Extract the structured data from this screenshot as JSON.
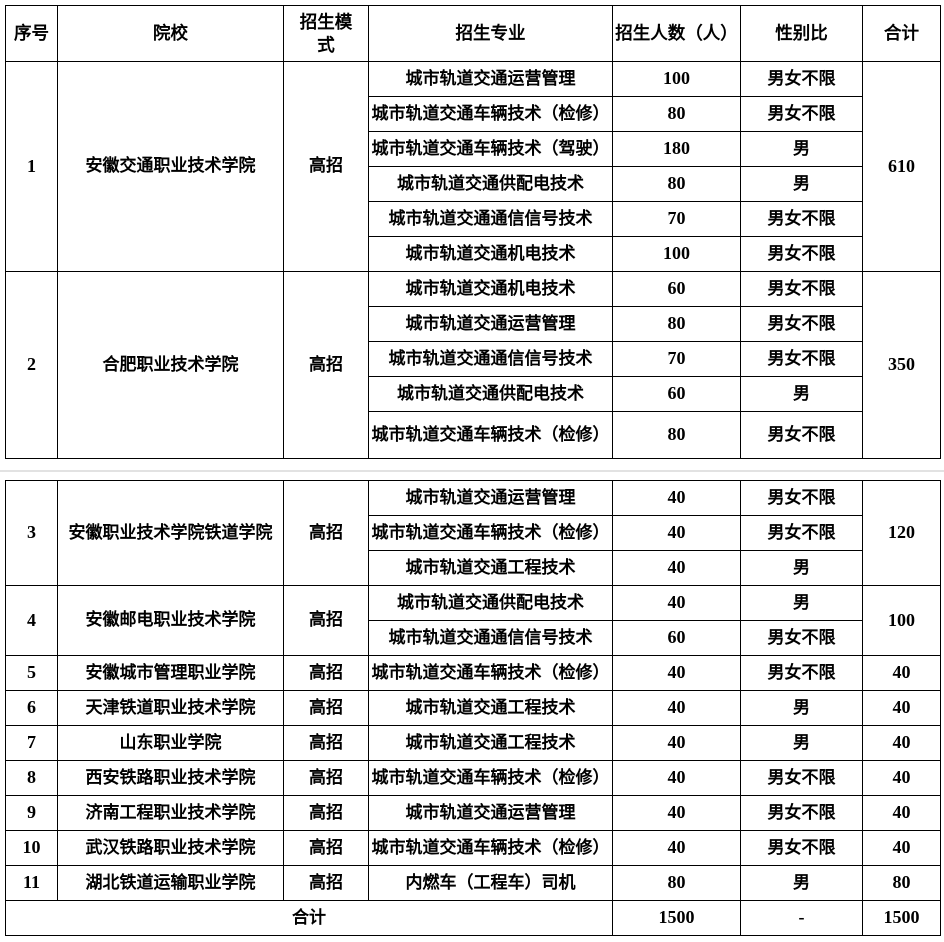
{
  "chart_data": {
    "type": "table",
    "columns": [
      "序号",
      "院校",
      "招生模式",
      "招生专业",
      "招生人数（人）",
      "性别比",
      "合计"
    ],
    "sections": [
      {
        "groups": [
          {
            "no": "1",
            "school": "安徽交通职业技术学院",
            "mode": "高招",
            "total": "610",
            "rows": [
              {
                "major": "城市轨道交通运营管理",
                "count": "100",
                "gender": "男女不限"
              },
              {
                "major": "城市轨道交通车辆技术（检修）",
                "count": "80",
                "gender": "男女不限"
              },
              {
                "major": "城市轨道交通车辆技术（驾驶）",
                "count": "180",
                "gender": "男"
              },
              {
                "major": "城市轨道交通供配电技术",
                "count": "80",
                "gender": "男"
              },
              {
                "major": "城市轨道交通通信信号技术",
                "count": "70",
                "gender": "男女不限"
              },
              {
                "major": "城市轨道交通机电技术",
                "count": "100",
                "gender": "男女不限"
              }
            ]
          },
          {
            "no": "2",
            "school": "合肥职业技术学院",
            "mode": "高招",
            "total": "350",
            "rows": [
              {
                "major": "城市轨道交通机电技术",
                "count": "60",
                "gender": "男女不限"
              },
              {
                "major": "城市轨道交通运营管理",
                "count": "80",
                "gender": "男女不限"
              },
              {
                "major": "城市轨道交通通信信号技术",
                "count": "70",
                "gender": "男女不限"
              },
              {
                "major": "城市轨道交通供配电技术",
                "count": "60",
                "gender": "男"
              },
              {
                "major": "城市轨道交通车辆技术（检修）",
                "count": "80",
                "gender": "男女不限"
              }
            ]
          }
        ]
      },
      {
        "groups": [
          {
            "no": "3",
            "school": "安徽职业技术学院铁道学院",
            "mode": "高招",
            "total": "120",
            "rows": [
              {
                "major": "城市轨道交通运营管理",
                "count": "40",
                "gender": "男女不限"
              },
              {
                "major": "城市轨道交通车辆技术（检修）",
                "count": "40",
                "gender": "男女不限"
              },
              {
                "major": "城市轨道交通工程技术",
                "count": "40",
                "gender": "男"
              }
            ]
          },
          {
            "no": "4",
            "school": "安徽邮电职业技术学院",
            "mode": "高招",
            "total": "100",
            "rows": [
              {
                "major": "城市轨道交通供配电技术",
                "count": "40",
                "gender": "男"
              },
              {
                "major": "城市轨道交通通信信号技术",
                "count": "60",
                "gender": "男女不限"
              }
            ]
          },
          {
            "no": "5",
            "school": "安徽城市管理职业学院",
            "mode": "高招",
            "total": "40",
            "rows": [
              {
                "major": "城市轨道交通车辆技术（检修）",
                "count": "40",
                "gender": "男女不限"
              }
            ]
          },
          {
            "no": "6",
            "school": "天津铁道职业技术学院",
            "mode": "高招",
            "total": "40",
            "rows": [
              {
                "major": "城市轨道交通工程技术",
                "count": "40",
                "gender": "男"
              }
            ]
          },
          {
            "no": "7",
            "school": "山东职业学院",
            "mode": "高招",
            "total": "40",
            "rows": [
              {
                "major": "城市轨道交通工程技术",
                "count": "40",
                "gender": "男"
              }
            ]
          },
          {
            "no": "8",
            "school": "西安铁路职业技术学院",
            "mode": "高招",
            "total": "40",
            "rows": [
              {
                "major": "城市轨道交通车辆技术（检修）",
                "count": "40",
                "gender": "男女不限"
              }
            ]
          },
          {
            "no": "9",
            "school": "济南工程职业技术学院",
            "mode": "高招",
            "total": "40",
            "rows": [
              {
                "major": "城市轨道交通运营管理",
                "count": "40",
                "gender": "男女不限"
              }
            ]
          },
          {
            "no": "10",
            "school": "武汉铁路职业技术学院",
            "mode": "高招",
            "total": "40",
            "rows": [
              {
                "major": "城市轨道交通车辆技术（检修）",
                "count": "40",
                "gender": "男女不限"
              }
            ]
          },
          {
            "no": "11",
            "school": "湖北铁道运输职业学院",
            "mode": "高招",
            "total": "80",
            "rows": [
              {
                "major": "内燃车（工程车）司机",
                "count": "80",
                "gender": "男"
              }
            ]
          }
        ],
        "footer": {
          "label": "合计",
          "count": "1500",
          "gender": "-",
          "total": "1500"
        }
      }
    ],
    "colors": {
      "border": "#000000",
      "text": "#000000",
      "divider": "#e2e2e2",
      "background": "#ffffff"
    }
  }
}
